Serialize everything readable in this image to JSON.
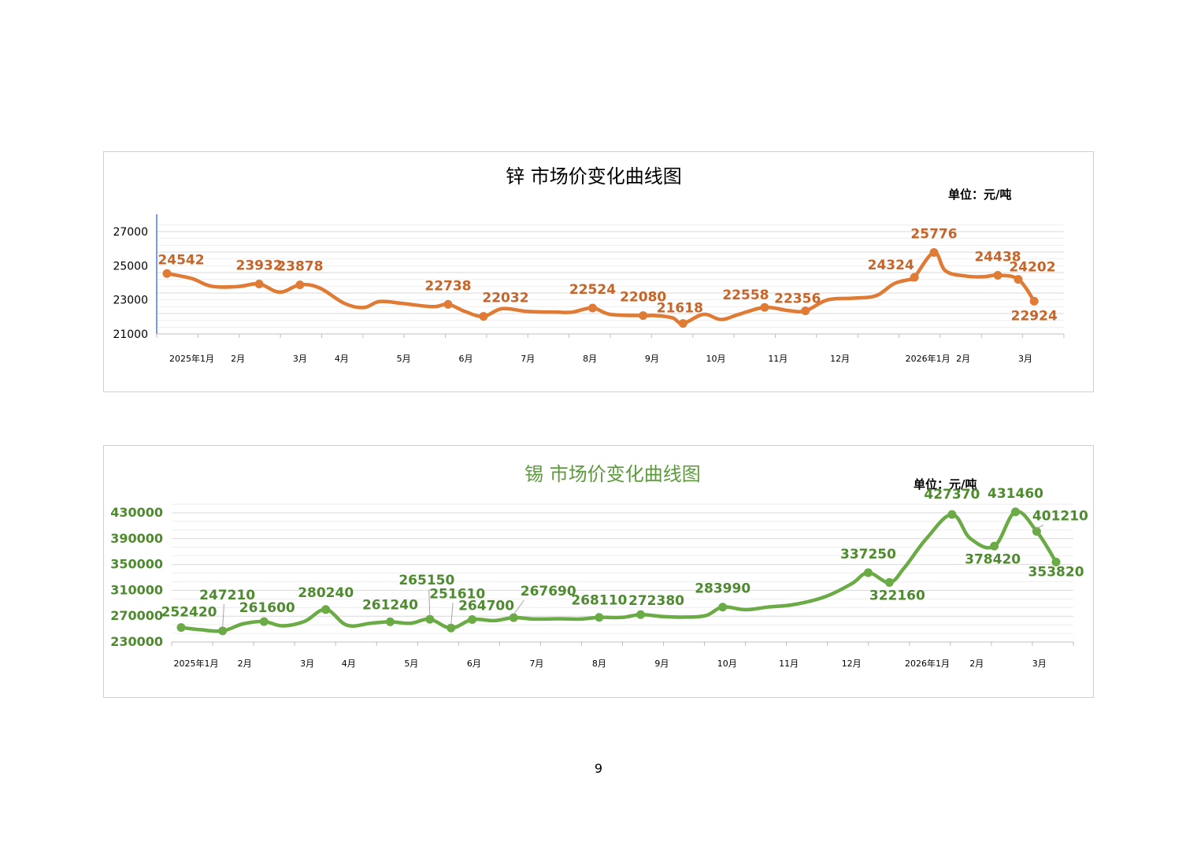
{
  "page_number": "9",
  "chart_data": [
    {
      "type": "line",
      "title": "锌  市场价变化曲线图",
      "unit": "单位：元/吨",
      "color": "#E07B35",
      "label_color": "#C5652A",
      "title_color": "#000000",
      "ylim": [
        21000,
        27000
      ],
      "yticks": [
        21000,
        23000,
        25000,
        27000
      ],
      "x_range": [
        0,
        1
      ],
      "x_tick_labels": [
        {
          "label": "2025年1月",
          "x": 0.028
        },
        {
          "label": "2月",
          "x": 0.08
        },
        {
          "label": "3月",
          "x": 0.15
        },
        {
          "label": "4月",
          "x": 0.197
        },
        {
          "label": "5月",
          "x": 0.267
        },
        {
          "label": "6月",
          "x": 0.337
        },
        {
          "label": "7月",
          "x": 0.407
        },
        {
          "label": "8月",
          "x": 0.477
        },
        {
          "label": "9月",
          "x": 0.547
        },
        {
          "label": "10月",
          "x": 0.619
        },
        {
          "label": "11月",
          "x": 0.689
        },
        {
          "label": "12月",
          "x": 0.759
        },
        {
          "label": "2026年1月",
          "x": 0.858
        },
        {
          "label": "2月",
          "x": 0.898
        },
        {
          "label": "3月",
          "x": 0.968
        }
      ],
      "series": [
        {
          "points": [
            [
              0.0,
              24542
            ],
            [
              0.028,
              24250
            ],
            [
              0.05,
              23800
            ],
            [
              0.08,
              23780
            ],
            [
              0.104,
              23932
            ],
            [
              0.127,
              23450
            ],
            [
              0.15,
              23878
            ],
            [
              0.172,
              23700
            ],
            [
              0.2,
              22800
            ],
            [
              0.222,
              22550
            ],
            [
              0.24,
              22900
            ],
            [
              0.267,
              22780
            ],
            [
              0.3,
              22600
            ],
            [
              0.317,
              22738
            ],
            [
              0.337,
              22300
            ],
            [
              0.357,
              22032
            ],
            [
              0.378,
              22480
            ],
            [
              0.407,
              22320
            ],
            [
              0.44,
              22280
            ],
            [
              0.457,
              22280
            ],
            [
              0.48,
              22524
            ],
            [
              0.5,
              22150
            ],
            [
              0.537,
              22080
            ],
            [
              0.551,
              22080
            ],
            [
              0.57,
              21950
            ],
            [
              0.582,
              21618
            ],
            [
              0.605,
              22150
            ],
            [
              0.625,
              21850
            ],
            [
              0.645,
              22150
            ],
            [
              0.674,
              22558
            ],
            [
              0.7,
              22380
            ],
            [
              0.72,
              22356
            ],
            [
              0.745,
              23000
            ],
            [
              0.775,
              23100
            ],
            [
              0.8,
              23250
            ],
            [
              0.82,
              23950
            ],
            [
              0.838,
              24200
            ],
            [
              0.843,
              24324
            ],
            [
              0.865,
              25776
            ],
            [
              0.878,
              24700
            ],
            [
              0.9,
              24400
            ],
            [
              0.92,
              24350
            ],
            [
              0.937,
              24438
            ],
            [
              0.96,
              24202
            ],
            [
              0.978,
              22924
            ]
          ],
          "markers": [
            0.0,
            0.104,
            0.15,
            0.317,
            0.357,
            0.48,
            0.537,
            0.582,
            0.674,
            0.72,
            0.843,
            0.865,
            0.937,
            0.96,
            0.978
          ],
          "labels": [
            {
              "x": 0.0,
              "y": 24542,
              "text": "24542",
              "dx": 18,
              "dy": -12
            },
            {
              "x": 0.104,
              "y": 23932,
              "text": "23932",
              "dx": 0,
              "dy": -18
            },
            {
              "x": 0.15,
              "y": 23878,
              "text": "23878",
              "dx": 0,
              "dy": -18
            },
            {
              "x": 0.317,
              "y": 22738,
              "text": "22738",
              "dx": 0,
              "dy": -18
            },
            {
              "x": 0.357,
              "y": 22032,
              "text": "22032",
              "dx": 28,
              "dy": -18
            },
            {
              "x": 0.48,
              "y": 22524,
              "text": "22524",
              "dx": 0,
              "dy": -18
            },
            {
              "x": 0.537,
              "y": 22080,
              "text": "22080",
              "dx": 0,
              "dy": -18
            },
            {
              "x": 0.582,
              "y": 21618,
              "text": "21618",
              "dx": -4,
              "dy": -14
            },
            {
              "x": 0.674,
              "y": 22558,
              "text": "22558",
              "dx": -24,
              "dy": -10
            },
            {
              "x": 0.72,
              "y": 22356,
              "text": "22356",
              "dx": -10,
              "dy": -10
            },
            {
              "x": 0.843,
              "y": 24324,
              "text": "24324",
              "dx": -30,
              "dy": -10
            },
            {
              "x": 0.865,
              "y": 25776,
              "text": "25776",
              "dx": 0,
              "dy": -18
            },
            {
              "x": 0.937,
              "y": 24438,
              "text": "24438",
              "dx": 0,
              "dy": -18
            },
            {
              "x": 0.96,
              "y": 24202,
              "text": "24202",
              "dx": 18,
              "dy": -10
            },
            {
              "x": 0.978,
              "y": 22924,
              "text": "22924",
              "dx": 0,
              "dy": 24
            }
          ]
        }
      ]
    },
    {
      "type": "line",
      "title": "锡  市场价变化曲线图",
      "unit": "单位：元/吨",
      "color": "#6AAB45",
      "label_color": "#4E8B2E",
      "title_color": "#5C9A3C",
      "ylim": [
        230000,
        430000
      ],
      "yticks": [
        230000,
        270000,
        310000,
        350000,
        390000,
        430000
      ],
      "x_range": [
        0,
        1
      ],
      "x_tick_labels": [
        {
          "label": "2025年1月",
          "x": 0.017
        },
        {
          "label": "2月",
          "x": 0.072
        },
        {
          "label": "3月",
          "x": 0.143
        },
        {
          "label": "4月",
          "x": 0.19
        },
        {
          "label": "5月",
          "x": 0.261
        },
        {
          "label": "6月",
          "x": 0.332
        },
        {
          "label": "7月",
          "x": 0.403
        },
        {
          "label": "8月",
          "x": 0.474
        },
        {
          "label": "9月",
          "x": 0.545
        },
        {
          "label": "10月",
          "x": 0.619
        },
        {
          "label": "11月",
          "x": 0.689
        },
        {
          "label": "12月",
          "x": 0.76
        },
        {
          "label": "2026年1月",
          "x": 0.846
        },
        {
          "label": "2月",
          "x": 0.902
        },
        {
          "label": "3月",
          "x": 0.973
        }
      ],
      "series": [
        {
          "points": [
            [
              0.0,
              252420
            ],
            [
              0.022,
              249000
            ],
            [
              0.047,
              247210
            ],
            [
              0.07,
              258000
            ],
            [
              0.094,
              261600
            ],
            [
              0.115,
              255000
            ],
            [
              0.14,
              262000
            ],
            [
              0.164,
              280240
            ],
            [
              0.188,
              256000
            ],
            [
              0.215,
              259000
            ],
            [
              0.237,
              261240
            ],
            [
              0.26,
              259000
            ],
            [
              0.282,
              265150
            ],
            [
              0.306,
              251610
            ],
            [
              0.33,
              264700
            ],
            [
              0.355,
              263000
            ],
            [
              0.377,
              267690
            ],
            [
              0.4,
              265500
            ],
            [
              0.43,
              266000
            ],
            [
              0.452,
              265500
            ],
            [
              0.474,
              268110
            ],
            [
              0.5,
              268000
            ],
            [
              0.521,
              272380
            ],
            [
              0.545,
              269500
            ],
            [
              0.571,
              268500
            ],
            [
              0.595,
              271000
            ],
            [
              0.614,
              283990
            ],
            [
              0.64,
              280000
            ],
            [
              0.665,
              284000
            ],
            [
              0.695,
              288000
            ],
            [
              0.73,
              300000
            ],
            [
              0.76,
              320000
            ],
            [
              0.779,
              337250
            ],
            [
              0.803,
              322160
            ],
            [
              0.82,
              345000
            ],
            [
              0.845,
              390000
            ],
            [
              0.874,
              427370
            ],
            [
              0.895,
              390000
            ],
            [
              0.922,
              378420
            ],
            [
              0.946,
              431460
            ],
            [
              0.97,
              401210
            ],
            [
              0.992,
              353820
            ]
          ],
          "markers": [
            0.0,
            0.047,
            0.094,
            0.164,
            0.237,
            0.282,
            0.306,
            0.33,
            0.377,
            0.474,
            0.521,
            0.614,
            0.779,
            0.803,
            0.874,
            0.922,
            0.946,
            0.97,
            0.992
          ],
          "labels": [
            {
              "x": 0.0,
              "y": 252420,
              "text": "252420",
              "dx": 10,
              "dy": -14
            },
            {
              "x": 0.047,
              "y": 247210,
              "text": "247210",
              "dx": 6,
              "dy": -40,
              "leader": true
            },
            {
              "x": 0.094,
              "y": 261600,
              "text": "261600",
              "dx": 4,
              "dy": -12
            },
            {
              "x": 0.164,
              "y": 280240,
              "text": "280240",
              "dx": 0,
              "dy": -16
            },
            {
              "x": 0.237,
              "y": 261240,
              "text": "261240",
              "dx": 0,
              "dy": -16
            },
            {
              "x": 0.282,
              "y": 265150,
              "text": "265150",
              "dx": -4,
              "dy": -44,
              "leader": true
            },
            {
              "x": 0.306,
              "y": 251610,
              "text": "251610",
              "dx": 8,
              "dy": -38,
              "leader": true
            },
            {
              "x": 0.33,
              "y": 264700,
              "text": "264700",
              "dx": 18,
              "dy": -12
            },
            {
              "x": 0.377,
              "y": 267690,
              "text": "267690",
              "dx": 44,
              "dy": -28,
              "leader": true
            },
            {
              "x": 0.474,
              "y": 268110,
              "text": "268110",
              "dx": 0,
              "dy": -16
            },
            {
              "x": 0.521,
              "y": 272380,
              "text": "272380",
              "dx": 20,
              "dy": -12
            },
            {
              "x": 0.614,
              "y": 283990,
              "text": "283990",
              "dx": 0,
              "dy": -18
            },
            {
              "x": 0.779,
              "y": 337250,
              "text": "337250",
              "dx": 0,
              "dy": -18
            },
            {
              "x": 0.803,
              "y": 322160,
              "text": "322160",
              "dx": 10,
              "dy": 22
            },
            {
              "x": 0.874,
              "y": 427370,
              "text": "427370",
              "dx": 0,
              "dy": -20
            },
            {
              "x": 0.922,
              "y": 378420,
              "text": "378420",
              "dx": -2,
              "dy": 22
            },
            {
              "x": 0.946,
              "y": 431460,
              "text": "431460",
              "dx": 0,
              "dy": -18
            },
            {
              "x": 0.97,
              "y": 401210,
              "text": "401210",
              "dx": 30,
              "dy": -14,
              "leader": true
            },
            {
              "x": 0.992,
              "y": 353820,
              "text": "353820",
              "dx": 0,
              "dy": 18
            }
          ]
        }
      ]
    }
  ]
}
